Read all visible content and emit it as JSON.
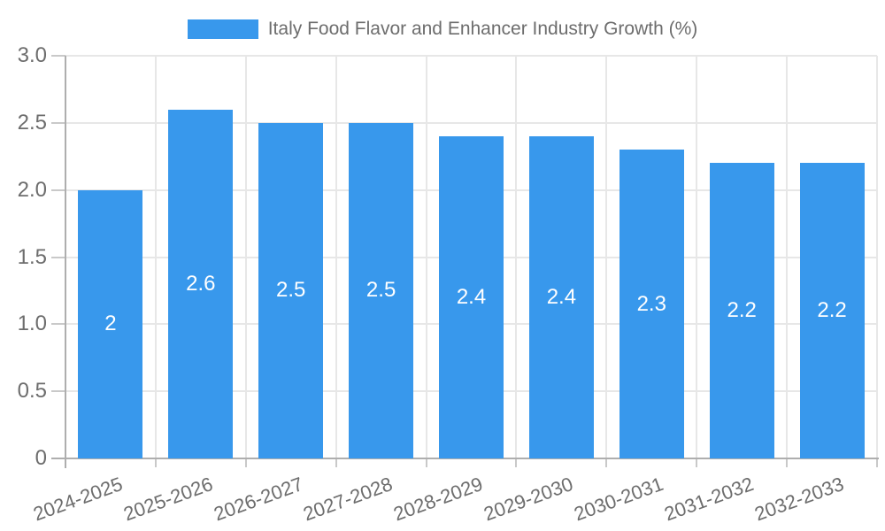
{
  "chart_data": {
    "type": "bar",
    "title": "Italy Food Flavor and Enhancer Industry Growth (%)",
    "legend": {
      "label": "Italy Food Flavor and Enhancer Industry Growth (%)",
      "position": "top-center"
    },
    "categories": [
      "2024-2025",
      "2025-2026",
      "2026-2027",
      "2027-2028",
      "2028-2029",
      "2029-2030",
      "2030-2031",
      "2031-2032",
      "2032-2033"
    ],
    "series": [
      {
        "name": "Italy Food Flavor and Enhancer Industry Growth (%)",
        "values": [
          2,
          2.6,
          2.5,
          2.5,
          2.4,
          2.4,
          2.3,
          2.2,
          2.2
        ]
      }
    ],
    "value_labels": [
      "2",
      "2.6",
      "2.5",
      "2.5",
      "2.4",
      "2.4",
      "2.3",
      "2.2",
      "2.2"
    ],
    "xlabel": "",
    "ylabel": "",
    "ylim": [
      0,
      3
    ],
    "yticks": [
      0,
      0.5,
      1,
      1.5,
      2,
      2.5,
      3
    ],
    "ytick_labels": [
      "0",
      "0.5",
      "1.0",
      "1.5",
      "2.0",
      "2.5",
      "3.0"
    ],
    "grid": true,
    "x_label_rotation_deg": -20,
    "colors": {
      "bar": "#3898ec",
      "value_label": "#ffffff",
      "tick_label": "#6d6d6d",
      "legend_label": "#6d6d6d",
      "axis_line": "#aeaeae",
      "gridline": "#e7e7e7",
      "tick_mark": "#c9c9c9",
      "background": "#ffffff"
    }
  }
}
